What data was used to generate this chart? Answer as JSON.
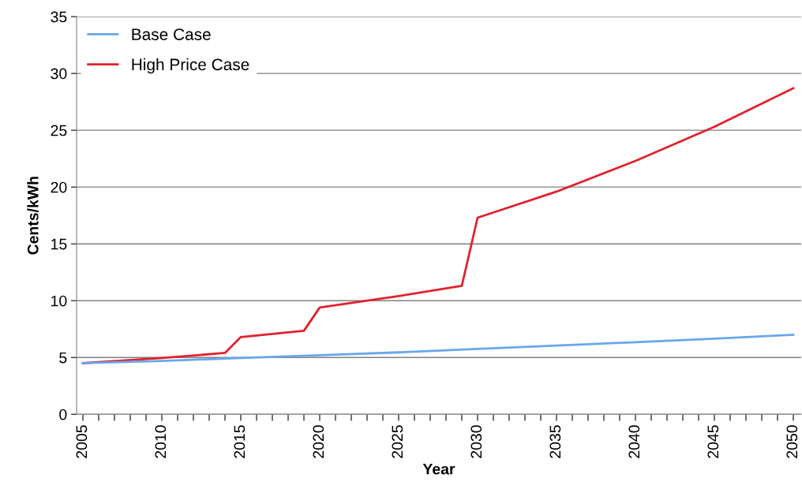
{
  "chart_data": {
    "type": "line",
    "xlabel": "Year",
    "ylabel": "Cents/kWh",
    "xlim": [
      2004.6,
      2050.5
    ],
    "xticks": [
      2005,
      {
        "value": 2006,
        "label": null
      },
      {
        "value": 2007,
        "label": null
      },
      {
        "value": 2008,
        "label": null
      },
      {
        "value": 2009,
        "label": null
      },
      2010,
      {
        "value": 2011,
        "label": null
      },
      {
        "value": 2012,
        "label": null
      },
      {
        "value": 2013,
        "label": null
      },
      {
        "value": 2014,
        "label": null
      },
      2015,
      {
        "value": 2016,
        "label": null
      },
      {
        "value": 2017,
        "label": null
      },
      {
        "value": 2018,
        "label": null
      },
      {
        "value": 2019,
        "label": null
      },
      2020,
      {
        "value": 2021,
        "label": null
      },
      {
        "value": 2022,
        "label": null
      },
      {
        "value": 2023,
        "label": null
      },
      {
        "value": 2024,
        "label": null
      },
      2025,
      {
        "value": 2026,
        "label": null
      },
      {
        "value": 2027,
        "label": null
      },
      {
        "value": 2028,
        "label": null
      },
      {
        "value": 2029,
        "label": null
      },
      2030,
      {
        "value": 2031,
        "label": null
      },
      {
        "value": 2032,
        "label": null
      },
      {
        "value": 2033,
        "label": null
      },
      {
        "value": 2034,
        "label": null
      },
      2035,
      {
        "value": 2036,
        "label": null
      },
      {
        "value": 2037,
        "label": null
      },
      {
        "value": 2038,
        "label": null
      },
      {
        "value": 2039,
        "label": null
      },
      2040,
      {
        "value": 2041,
        "label": null
      },
      {
        "value": 2042,
        "label": null
      },
      {
        "value": 2043,
        "label": null
      },
      {
        "value": 2044,
        "label": null
      },
      2045,
      {
        "value": 2046,
        "label": null
      },
      {
        "value": 2047,
        "label": null
      },
      {
        "value": 2048,
        "label": null
      },
      {
        "value": 2049,
        "label": null
      },
      2050
    ],
    "ylim": [
      0,
      35
    ],
    "yticks": [
      0,
      5,
      10,
      15,
      20,
      25,
      30,
      35
    ],
    "grid": "y",
    "legend": "top left",
    "marker": "none",
    "line_style": "solid",
    "series": [
      {
        "name": "Base Case",
        "color": "#6aa6ee",
        "x": [
          2005,
          2010,
          2015,
          2020,
          2025,
          2030,
          2035,
          2040,
          2045,
          2050
        ],
        "values": [
          4.5,
          4.7,
          4.95,
          5.2,
          5.45,
          5.75,
          6.05,
          6.35,
          6.65,
          7.0
        ]
      },
      {
        "name": "High Price Case",
        "color": "#e0222e",
        "x": [
          2005,
          2010,
          2014,
          2015,
          2019,
          2020,
          2025,
          2029,
          2030,
          2035,
          2040,
          2045,
          2050
        ],
        "values": [
          4.5,
          4.95,
          5.4,
          6.8,
          7.35,
          9.4,
          10.4,
          11.3,
          17.3,
          19.6,
          22.3,
          25.3,
          28.7
        ]
      }
    ]
  }
}
